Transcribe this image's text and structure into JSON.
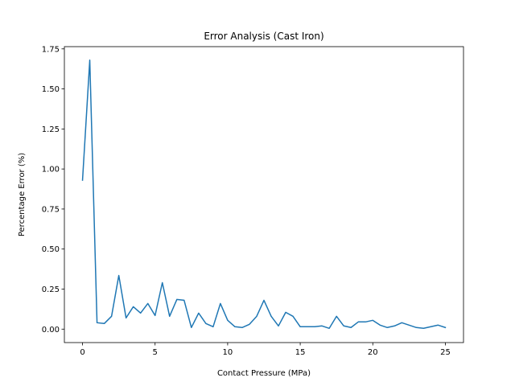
{
  "chart_data": {
    "type": "line",
    "title": "Error Analysis (Cast Iron)",
    "xlabel": "Contact Pressure (MPa)",
    "ylabel": "Percentage Error (%)",
    "xlim": [
      -1.25,
      26.25
    ],
    "ylim": [
      -0.084,
      1.764
    ],
    "xticks": [
      0,
      5,
      10,
      15,
      20,
      25
    ],
    "xtick_labels": [
      "0",
      "5",
      "10",
      "15",
      "20",
      "25"
    ],
    "yticks": [
      0.0,
      0.25,
      0.5,
      0.75,
      1.0,
      1.25,
      1.5,
      1.75
    ],
    "ytick_labels": [
      "0.00",
      "0.25",
      "0.50",
      "0.75",
      "1.00",
      "1.25",
      "1.50",
      "1.75"
    ],
    "grid": false,
    "legend": "none",
    "series": [
      {
        "color": "#1f77b4",
        "x": [
          0,
          0.5,
          1,
          1.5,
          2,
          2.5,
          3,
          3.5,
          4,
          4.5,
          5,
          5.5,
          6,
          6.5,
          7,
          7.5,
          8,
          8.5,
          9,
          9.5,
          10,
          10.5,
          11,
          11.5,
          12,
          12.5,
          13,
          13.5,
          14,
          14.5,
          15,
          15.5,
          16,
          16.5,
          17,
          17.5,
          18,
          18.5,
          19,
          19.5,
          20,
          20.5,
          21,
          21.5,
          22,
          22.5,
          23,
          23.5,
          24,
          24.5,
          25
        ],
        "y": [
          0.93,
          1.68,
          0.04,
          0.035,
          0.08,
          0.335,
          0.07,
          0.14,
          0.1,
          0.16,
          0.085,
          0.29,
          0.08,
          0.185,
          0.18,
          0.01,
          0.1,
          0.035,
          0.015,
          0.16,
          0.055,
          0.015,
          0.01,
          0.03,
          0.08,
          0.18,
          0.08,
          0.02,
          0.105,
          0.08,
          0.015,
          0.015,
          0.015,
          0.02,
          0.005,
          0.08,
          0.02,
          0.01,
          0.045,
          0.045,
          0.055,
          0.025,
          0.01,
          0.02,
          0.04,
          0.025,
          0.01,
          0.005,
          0.015,
          0.025,
          0.01
        ]
      }
    ]
  }
}
